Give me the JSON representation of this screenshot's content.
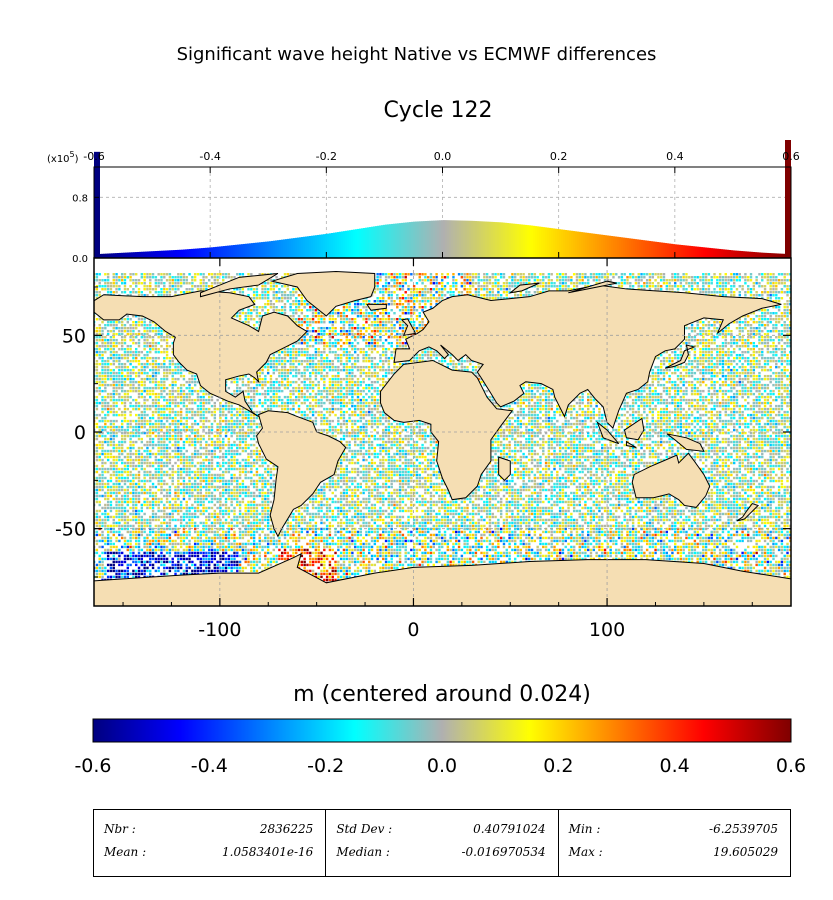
{
  "figure": {
    "suptitle": "Significant wave height Native vs ECMWF differences",
    "title": "Cycle 122"
  },
  "colors": {
    "land": "#f5deb3",
    "jet": [
      "#00007f",
      "#0000ff",
      "#0080ff",
      "#00ffff",
      "#b0b0b0",
      "#ffff00",
      "#ff8000",
      "#ff0000",
      "#7f0000"
    ]
  },
  "chart_data": [
    {
      "type": "histogram",
      "role": "distribution of differences (colored by value)",
      "scale_label": "(x10",
      "scale_exponent": "5",
      "xlim": [
        -0.6,
        0.6
      ],
      "ylim": [
        0,
        1.2
      ],
      "xticks": [
        "-0.6",
        "-0.4",
        "-0.2",
        "0.0",
        "0.2",
        "0.4",
        "0.6"
      ],
      "xtick_values": [
        -0.6,
        -0.4,
        -0.2,
        0.0,
        0.2,
        0.4,
        0.6
      ],
      "yticks": [
        "0.0",
        "0.8"
      ],
      "ytick_values": [
        0.0,
        0.8
      ],
      "grid": true,
      "bins_x": [
        -0.6,
        -0.55,
        -0.5,
        -0.45,
        -0.4,
        -0.35,
        -0.3,
        -0.25,
        -0.2,
        -0.15,
        -0.1,
        -0.05,
        0.0,
        0.05,
        0.1,
        0.15,
        0.2,
        0.25,
        0.3,
        0.35,
        0.4,
        0.45,
        0.5,
        0.55,
        0.6
      ],
      "counts": [
        0.05,
        0.07,
        0.09,
        0.11,
        0.14,
        0.18,
        0.22,
        0.27,
        0.32,
        0.38,
        0.44,
        0.48,
        0.5,
        0.49,
        0.47,
        0.43,
        0.38,
        0.33,
        0.28,
        0.23,
        0.18,
        0.14,
        0.1,
        0.07,
        0.05
      ],
      "edge_left": 1.4,
      "edge_right": 1.7
    },
    {
      "type": "heatmap",
      "role": "global map of differences along altimeter tracks",
      "xlim": [
        -165,
        195
      ],
      "ylim": [
        -90,
        90
      ],
      "xticks": [
        "-100",
        "0",
        "100"
      ],
      "xtick_values": [
        -100,
        0,
        100
      ],
      "yticks": [
        "50",
        "0",
        "-50"
      ],
      "ytick_values": [
        50,
        0,
        -50
      ],
      "grid": true
    },
    {
      "type": "colorbar",
      "label": "m (centered around 0.024)",
      "range": [
        -0.6,
        0.6
      ],
      "ticks": [
        "-0.6",
        "-0.4",
        "-0.2",
        "0.0",
        "0.2",
        "0.4",
        "0.6"
      ],
      "tick_values": [
        -0.6,
        -0.4,
        -0.2,
        0.0,
        0.2,
        0.4,
        0.6
      ]
    }
  ],
  "stats": {
    "nbr_label": "Nbr :",
    "nbr": "2836225",
    "mean_label": "Mean :",
    "mean": "1.0583401e-16",
    "std_label": "Std Dev :",
    "std": "0.40791024",
    "median_label": "Median :",
    "median": "-0.016970534",
    "min_label": "Min :",
    "min": "-6.2539705",
    "max_label": "Max :",
    "max": "19.605029"
  }
}
